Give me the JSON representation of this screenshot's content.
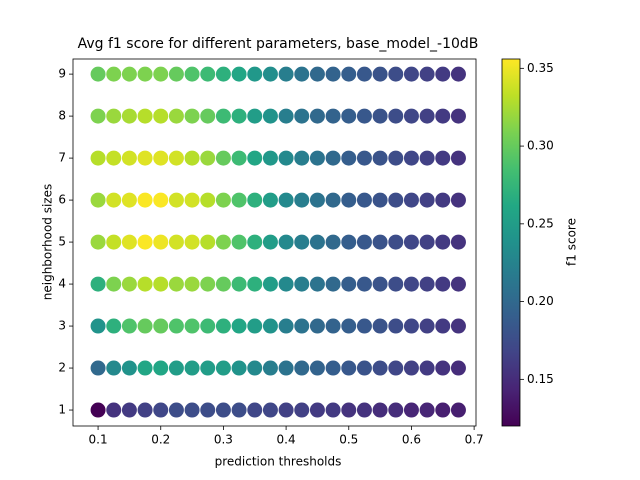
{
  "chart_data": {
    "type": "scatter",
    "title": "Avg f1 score for different parameters, base_model_-10dB",
    "x_label": "prediction thresholds",
    "y_label": "neighborhood sizes",
    "colorbar_label": "f1 score",
    "colormap": "viridis",
    "x": [
      0.1,
      0.125,
      0.15,
      0.175,
      0.2,
      0.225,
      0.25,
      0.275,
      0.3,
      0.325,
      0.35,
      0.375,
      0.4,
      0.425,
      0.45,
      0.475,
      0.5,
      0.525,
      0.55,
      0.575,
      0.6,
      0.625,
      0.65,
      0.675
    ],
    "y": [
      1,
      2,
      3,
      4,
      5,
      6,
      7,
      8,
      9
    ],
    "values": [
      [
        0.12,
        0.155,
        0.16,
        0.165,
        0.17,
        0.175,
        0.175,
        0.175,
        0.175,
        0.175,
        0.17,
        0.17,
        0.165,
        0.165,
        0.16,
        0.16,
        0.155,
        0.155,
        0.15,
        0.15,
        0.145,
        0.145,
        0.14,
        0.14
      ],
      [
        0.2,
        0.23,
        0.24,
        0.26,
        0.26,
        0.25,
        0.25,
        0.25,
        0.25,
        0.24,
        0.23,
        0.22,
        0.21,
        0.2,
        0.195,
        0.19,
        0.185,
        0.18,
        0.175,
        0.17,
        0.165,
        0.16,
        0.155,
        0.15
      ],
      [
        0.24,
        0.27,
        0.29,
        0.3,
        0.3,
        0.29,
        0.29,
        0.28,
        0.27,
        0.26,
        0.25,
        0.24,
        0.22,
        0.21,
        0.2,
        0.195,
        0.19,
        0.185,
        0.18,
        0.175,
        0.17,
        0.165,
        0.16,
        0.155
      ],
      [
        0.27,
        0.31,
        0.32,
        0.33,
        0.33,
        0.32,
        0.32,
        0.31,
        0.3,
        0.28,
        0.27,
        0.25,
        0.23,
        0.22,
        0.21,
        0.2,
        0.19,
        0.185,
        0.18,
        0.175,
        0.17,
        0.165,
        0.16,
        0.155
      ],
      [
        0.32,
        0.335,
        0.345,
        0.355,
        0.35,
        0.34,
        0.34,
        0.33,
        0.31,
        0.29,
        0.27,
        0.25,
        0.23,
        0.22,
        0.21,
        0.2,
        0.19,
        0.185,
        0.18,
        0.175,
        0.17,
        0.165,
        0.16,
        0.155
      ],
      [
        0.32,
        0.34,
        0.345,
        0.355,
        0.355,
        0.34,
        0.34,
        0.33,
        0.31,
        0.29,
        0.27,
        0.25,
        0.23,
        0.22,
        0.21,
        0.2,
        0.19,
        0.185,
        0.18,
        0.175,
        0.17,
        0.165,
        0.16,
        0.155
      ],
      [
        0.33,
        0.335,
        0.34,
        0.345,
        0.345,
        0.34,
        0.33,
        0.32,
        0.3,
        0.28,
        0.26,
        0.245,
        0.23,
        0.22,
        0.21,
        0.2,
        0.19,
        0.185,
        0.18,
        0.175,
        0.17,
        0.165,
        0.16,
        0.155
      ],
      [
        0.31,
        0.32,
        0.325,
        0.33,
        0.33,
        0.32,
        0.31,
        0.3,
        0.28,
        0.27,
        0.25,
        0.24,
        0.22,
        0.21,
        0.2,
        0.195,
        0.19,
        0.185,
        0.18,
        0.175,
        0.17,
        0.165,
        0.16,
        0.155
      ],
      [
        0.3,
        0.31,
        0.31,
        0.31,
        0.31,
        0.3,
        0.29,
        0.28,
        0.27,
        0.26,
        0.245,
        0.235,
        0.22,
        0.21,
        0.2,
        0.195,
        0.19,
        0.185,
        0.18,
        0.175,
        0.17,
        0.165,
        0.16,
        0.155
      ]
    ],
    "xlim": [
      0.06,
      0.703
    ],
    "xticks": [
      0.1,
      0.2,
      0.3,
      0.4,
      0.5,
      0.6,
      0.7
    ],
    "ylim": [
      0.62,
      9.36
    ],
    "yticks": [
      1,
      2,
      3,
      4,
      5,
      6,
      7,
      8,
      9
    ],
    "clim": [
      0.12,
      0.356
    ],
    "cticks": [
      0.15,
      {
        "value": 0.2,
        "label": "0.20"
      },
      0.25,
      {
        "value": 0.3,
        "label": "0.30"
      },
      0.35
    ]
  }
}
